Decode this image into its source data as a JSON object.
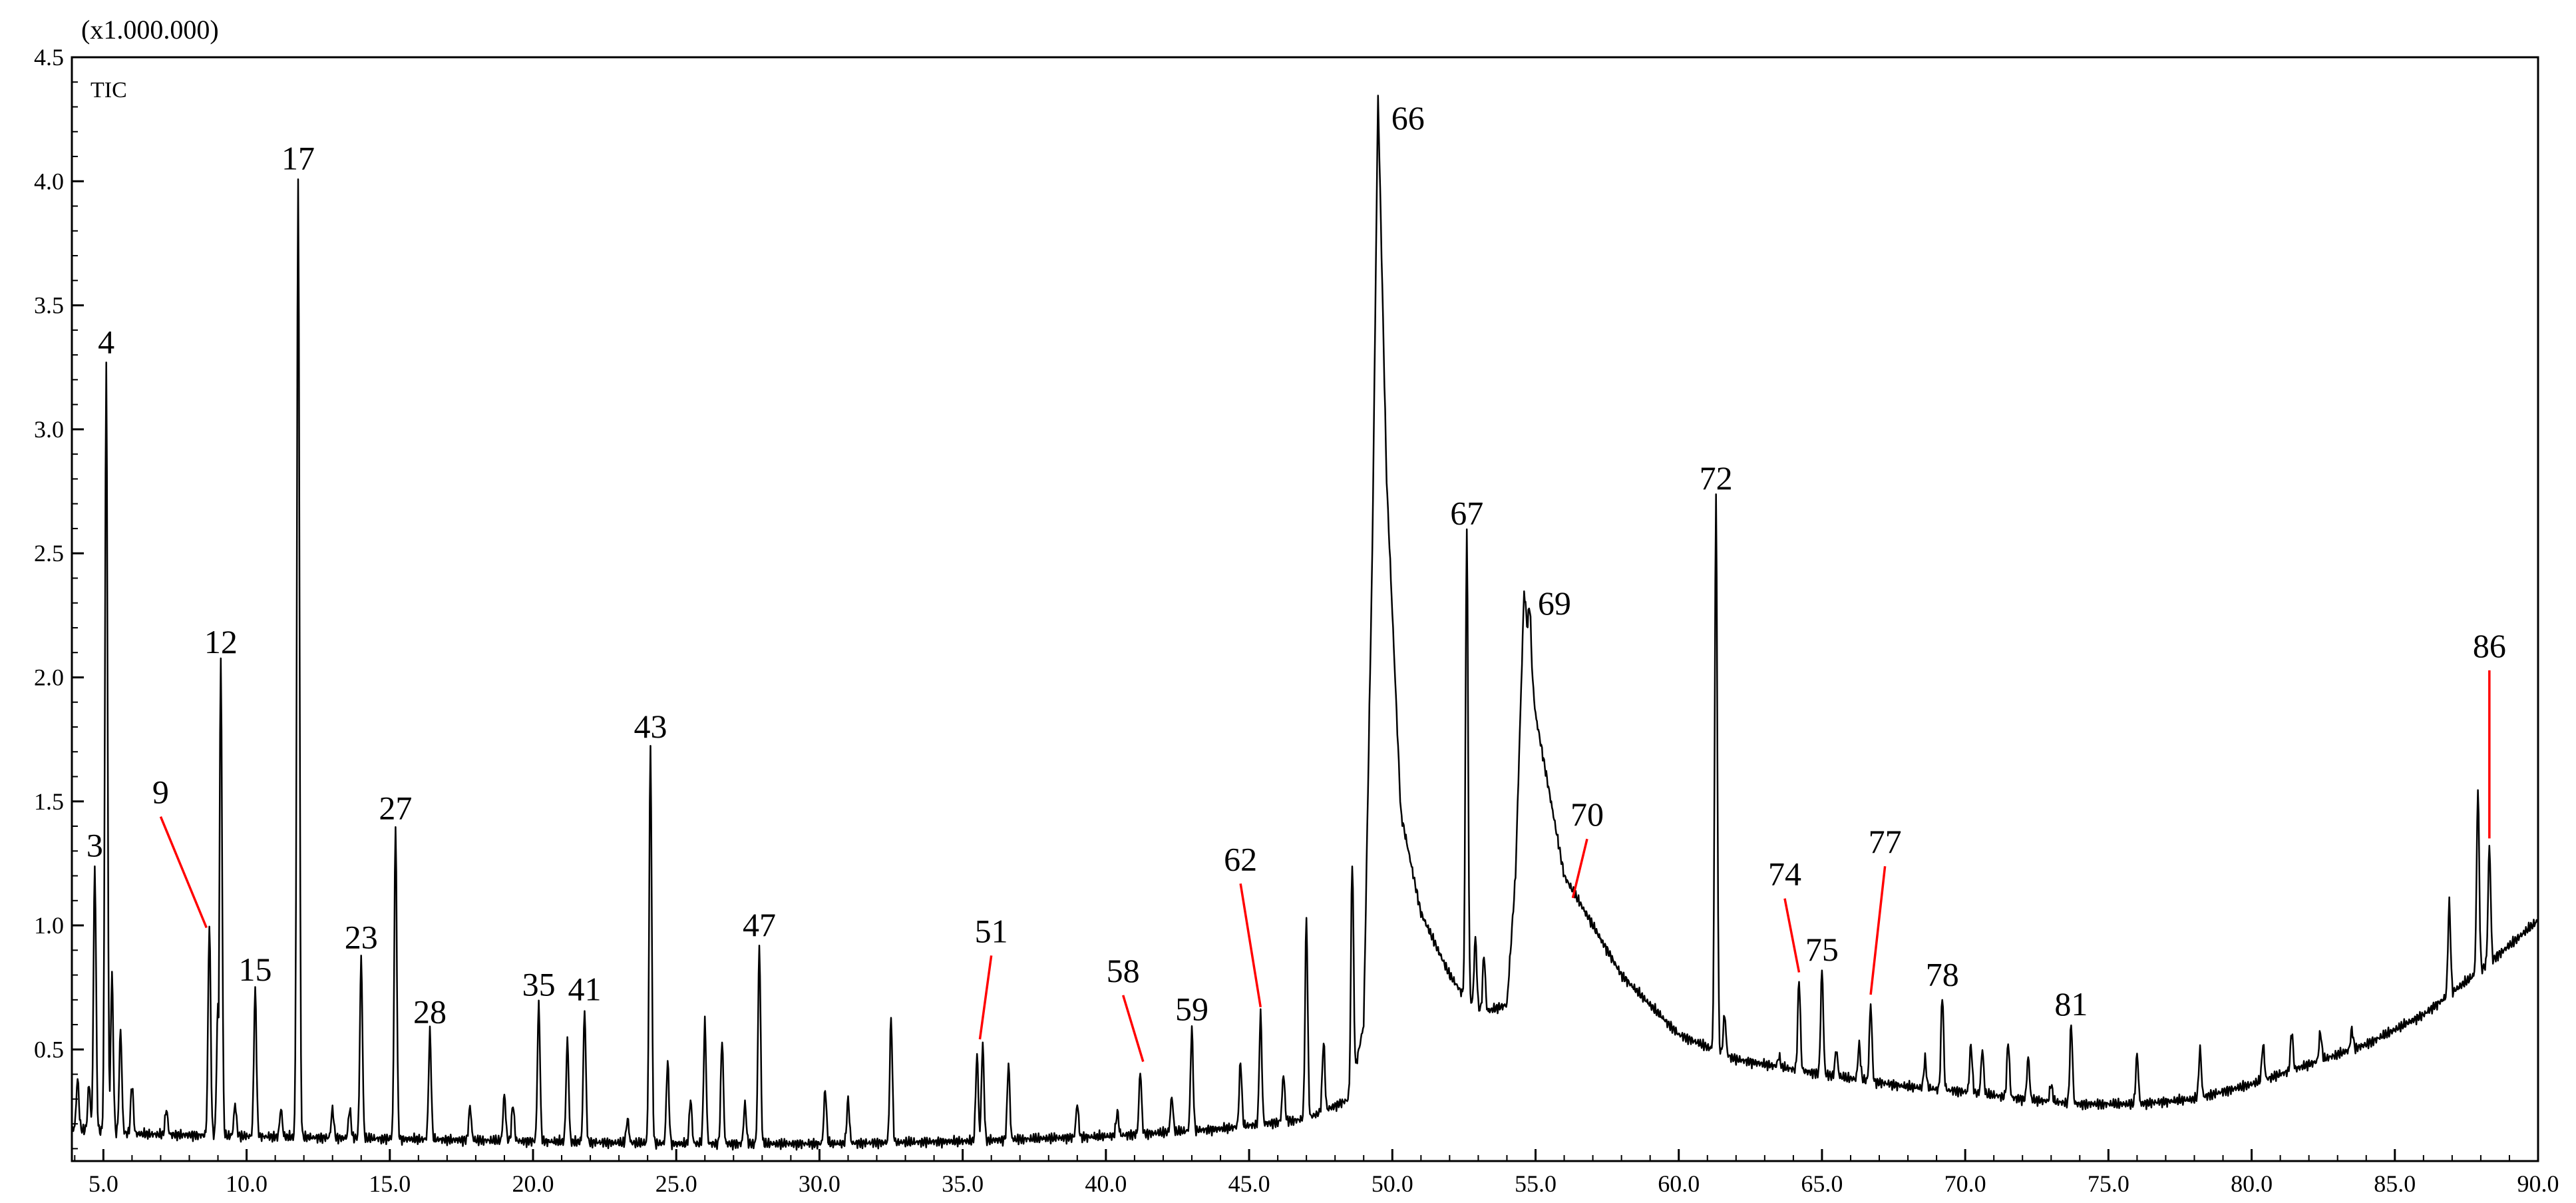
{
  "chart_data": {
    "type": "line",
    "title": "",
    "xlabel": "",
    "ylabel": "",
    "y_multiplier": "(x1.000.000)",
    "trace_label": "TIC",
    "xlim": [
      3.9,
      90.0
    ],
    "ylim": [
      0.05,
      4.5
    ],
    "x_ticks": [
      {
        "value": 5.0,
        "label": "5.0"
      },
      {
        "value": 10.0,
        "label": "10.0"
      },
      {
        "value": 15.0,
        "label": "15.0"
      },
      {
        "value": 20.0,
        "label": "20.0"
      },
      {
        "value": 25.0,
        "label": "25.0"
      },
      {
        "value": 30.0,
        "label": "30.0"
      },
      {
        "value": 35.0,
        "label": "35.0"
      },
      {
        "value": 40.0,
        "label": "40.0"
      },
      {
        "value": 45.0,
        "label": "45.0"
      },
      {
        "value": 50.0,
        "label": "50.0"
      },
      {
        "value": 55.0,
        "label": "55.0"
      },
      {
        "value": 60.0,
        "label": "60.0"
      },
      {
        "value": 65.0,
        "label": "65.0"
      },
      {
        "value": 70.0,
        "label": "70.0"
      },
      {
        "value": 75.0,
        "label": "75.0"
      },
      {
        "value": 80.0,
        "label": "80.0"
      },
      {
        "value": 85.0,
        "label": "85.0"
      },
      {
        "value": 90.0,
        "label": "90.0"
      }
    ],
    "y_ticks": [
      {
        "value": 0.5,
        "label": "0.5"
      },
      {
        "value": 1.0,
        "label": "1.0"
      },
      {
        "value": 1.5,
        "label": "1.5"
      },
      {
        "value": 2.0,
        "label": "2.0"
      },
      {
        "value": 2.5,
        "label": "2.5"
      },
      {
        "value": 3.0,
        "label": "3.0"
      },
      {
        "value": 3.5,
        "label": "3.5"
      },
      {
        "value": 4.0,
        "label": "4.0"
      },
      {
        "value": 4.5,
        "label": "4.5"
      }
    ],
    "baseline": [
      [
        3.9,
        0.18
      ],
      [
        6.0,
        0.16
      ],
      [
        10.0,
        0.15
      ],
      [
        15.0,
        0.14
      ],
      [
        20.0,
        0.13
      ],
      [
        25.0,
        0.12
      ],
      [
        30.0,
        0.12
      ],
      [
        35.0,
        0.13
      ],
      [
        40.0,
        0.15
      ],
      [
        44.0,
        0.18
      ],
      [
        47.0,
        0.22
      ],
      [
        48.5,
        0.3
      ],
      [
        49.0,
        0.6
      ],
      [
        49.3,
        2.5
      ],
      [
        49.5,
        4.35
      ],
      [
        49.8,
        2.8
      ],
      [
        50.3,
        1.45
      ],
      [
        51.0,
        1.05
      ],
      [
        52.0,
        0.8
      ],
      [
        52.6,
        0.7
      ],
      [
        53.2,
        0.65
      ],
      [
        54.0,
        0.68
      ],
      [
        54.3,
        1.2
      ],
      [
        54.6,
        2.35
      ],
      [
        55.0,
        1.85
      ],
      [
        56.0,
        1.2
      ],
      [
        58.0,
        0.8
      ],
      [
        60.0,
        0.56
      ],
      [
        62.0,
        0.46
      ],
      [
        65.0,
        0.4
      ],
      [
        68.0,
        0.35
      ],
      [
        70.0,
        0.33
      ],
      [
        72.0,
        0.3
      ],
      [
        74.0,
        0.28
      ],
      [
        76.0,
        0.28
      ],
      [
        78.0,
        0.3
      ],
      [
        80.0,
        0.36
      ],
      [
        82.0,
        0.44
      ],
      [
        84.0,
        0.52
      ],
      [
        86.0,
        0.64
      ],
      [
        88.0,
        0.82
      ],
      [
        90.0,
        1.02
      ]
    ],
    "peaks": [
      {
        "x": 4.1,
        "y": 0.38
      },
      {
        "x": 4.5,
        "y": 0.36
      },
      {
        "x": 4.7,
        "y": 1.24
      },
      {
        "x": 5.1,
        "y": 3.27
      },
      {
        "x": 5.3,
        "y": 0.8
      },
      {
        "x": 5.6,
        "y": 0.58
      },
      {
        "x": 6.0,
        "y": 0.36
      },
      {
        "x": 7.2,
        "y": 0.26
      },
      {
        "x": 8.7,
        "y": 1.0
      },
      {
        "x": 9.0,
        "y": 0.68
      },
      {
        "x": 9.1,
        "y": 2.06
      },
      {
        "x": 9.6,
        "y": 0.28
      },
      {
        "x": 10.3,
        "y": 0.74
      },
      {
        "x": 11.2,
        "y": 0.26
      },
      {
        "x": 11.8,
        "y": 4.01
      },
      {
        "x": 13.0,
        "y": 0.26
      },
      {
        "x": 13.6,
        "y": 0.26
      },
      {
        "x": 14.0,
        "y": 0.87
      },
      {
        "x": 15.2,
        "y": 1.39
      },
      {
        "x": 16.4,
        "y": 0.57
      },
      {
        "x": 17.8,
        "y": 0.27
      },
      {
        "x": 19.0,
        "y": 0.32
      },
      {
        "x": 19.3,
        "y": 0.28
      },
      {
        "x": 20.2,
        "y": 0.68
      },
      {
        "x": 21.2,
        "y": 0.54
      },
      {
        "x": 21.8,
        "y": 0.66
      },
      {
        "x": 23.3,
        "y": 0.22
      },
      {
        "x": 24.1,
        "y": 1.72
      },
      {
        "x": 24.7,
        "y": 0.45
      },
      {
        "x": 25.5,
        "y": 0.3
      },
      {
        "x": 26.0,
        "y": 0.61
      },
      {
        "x": 26.6,
        "y": 0.54
      },
      {
        "x": 27.4,
        "y": 0.28
      },
      {
        "x": 27.9,
        "y": 0.92
      },
      {
        "x": 30.2,
        "y": 0.34
      },
      {
        "x": 31.0,
        "y": 0.3
      },
      {
        "x": 32.5,
        "y": 0.63
      },
      {
        "x": 35.5,
        "y": 0.48
      },
      {
        "x": 35.7,
        "y": 0.52
      },
      {
        "x": 36.6,
        "y": 0.44
      },
      {
        "x": 39.0,
        "y": 0.28
      },
      {
        "x": 40.4,
        "y": 0.25
      },
      {
        "x": 41.2,
        "y": 0.41
      },
      {
        "x": 42.3,
        "y": 0.31
      },
      {
        "x": 43.0,
        "y": 0.58
      },
      {
        "x": 44.7,
        "y": 0.45
      },
      {
        "x": 45.4,
        "y": 0.64
      },
      {
        "x": 46.2,
        "y": 0.4
      },
      {
        "x": 47.0,
        "y": 1.03
      },
      {
        "x": 47.6,
        "y": 0.53
      },
      {
        "x": 48.6,
        "y": 1.26
      },
      {
        "x": 49.8,
        "y": 1.72
      },
      {
        "x": 52.6,
        "y": 2.58
      },
      {
        "x": 52.9,
        "y": 0.95
      },
      {
        "x": 53.2,
        "y": 0.88
      },
      {
        "x": 54.8,
        "y": 2.28
      },
      {
        "x": 55.5,
        "y": 1.25
      },
      {
        "x": 58.8,
        "y": 0.58
      },
      {
        "x": 61.3,
        "y": 2.72
      },
      {
        "x": 61.6,
        "y": 0.64
      },
      {
        "x": 63.5,
        "y": 0.47
      },
      {
        "x": 64.2,
        "y": 0.78
      },
      {
        "x": 65.0,
        "y": 0.82
      },
      {
        "x": 65.5,
        "y": 0.5
      },
      {
        "x": 66.3,
        "y": 0.52
      },
      {
        "x": 66.7,
        "y": 0.68
      },
      {
        "x": 68.6,
        "y": 0.46
      },
      {
        "x": 69.2,
        "y": 0.72
      },
      {
        "x": 70.2,
        "y": 0.52
      },
      {
        "x": 70.6,
        "y": 0.5
      },
      {
        "x": 71.5,
        "y": 0.53
      },
      {
        "x": 72.2,
        "y": 0.47
      },
      {
        "x": 73.0,
        "y": 0.36
      },
      {
        "x": 73.7,
        "y": 0.6
      },
      {
        "x": 76.0,
        "y": 0.48
      },
      {
        "x": 78.2,
        "y": 0.5
      },
      {
        "x": 80.4,
        "y": 0.52
      },
      {
        "x": 81.4,
        "y": 0.57
      },
      {
        "x": 82.4,
        "y": 0.57
      },
      {
        "x": 83.5,
        "y": 0.58
      },
      {
        "x": 86.9,
        "y": 1.09
      },
      {
        "x": 87.9,
        "y": 1.54
      },
      {
        "x": 88.3,
        "y": 1.32
      }
    ],
    "peak_labels": [
      {
        "text": "3",
        "x": 4.7,
        "y": 1.24
      },
      {
        "text": "4",
        "x": 5.1,
        "y": 3.27
      },
      {
        "text": "9",
        "x": 8.6,
        "y": 0.98,
        "lx": 7.0,
        "ly": 1.46
      },
      {
        "text": "12",
        "x": 9.1,
        "y": 2.06
      },
      {
        "text": "15",
        "x": 10.3,
        "y": 0.74
      },
      {
        "text": "17",
        "x": 11.8,
        "y": 4.01
      },
      {
        "text": "23",
        "x": 14.0,
        "y": 0.87
      },
      {
        "text": "27",
        "x": 15.2,
        "y": 1.39
      },
      {
        "text": "28",
        "x": 16.4,
        "y": 0.57
      },
      {
        "text": "35",
        "x": 20.2,
        "y": 0.68
      },
      {
        "text": "41",
        "x": 21.8,
        "y": 0.66
      },
      {
        "text": "43",
        "x": 24.1,
        "y": 1.72
      },
      {
        "text": "47",
        "x": 27.9,
        "y": 0.92
      },
      {
        "text": "51",
        "x": 35.6,
        "y": 0.53,
        "lx": 36.0,
        "ly": 0.9
      },
      {
        "text": "58",
        "x": 41.3,
        "y": 0.44,
        "lx": 40.6,
        "ly": 0.74
      },
      {
        "text": "59",
        "x": 43.0,
        "y": 0.58
      },
      {
        "text": "62",
        "x": 45.4,
        "y": 0.66,
        "lx": 44.7,
        "ly": 1.19
      },
      {
        "text": "66",
        "x": 49.5,
        "y": 4.35
      },
      {
        "text": "67",
        "x": 52.6,
        "y": 2.58
      },
      {
        "text": "69",
        "x": 54.8,
        "y": 2.28
      },
      {
        "text": "70",
        "x": 56.3,
        "y": 1.1,
        "lx": 56.8,
        "ly": 1.37
      },
      {
        "text": "72",
        "x": 61.3,
        "y": 2.72
      },
      {
        "text": "74",
        "x": 64.2,
        "y": 0.8,
        "lx": 63.7,
        "ly": 1.13
      },
      {
        "text": "75",
        "x": 65.0,
        "y": 0.82
      },
      {
        "text": "77",
        "x": 66.7,
        "y": 0.71,
        "lx": 67.2,
        "ly": 1.26
      },
      {
        "text": "78",
        "x": 69.2,
        "y": 0.72
      },
      {
        "text": "81",
        "x": 73.7,
        "y": 0.6
      },
      {
        "text": "86",
        "x": 88.3,
        "y": 1.34,
        "lx": 88.3,
        "ly": 2.05
      }
    ]
  }
}
